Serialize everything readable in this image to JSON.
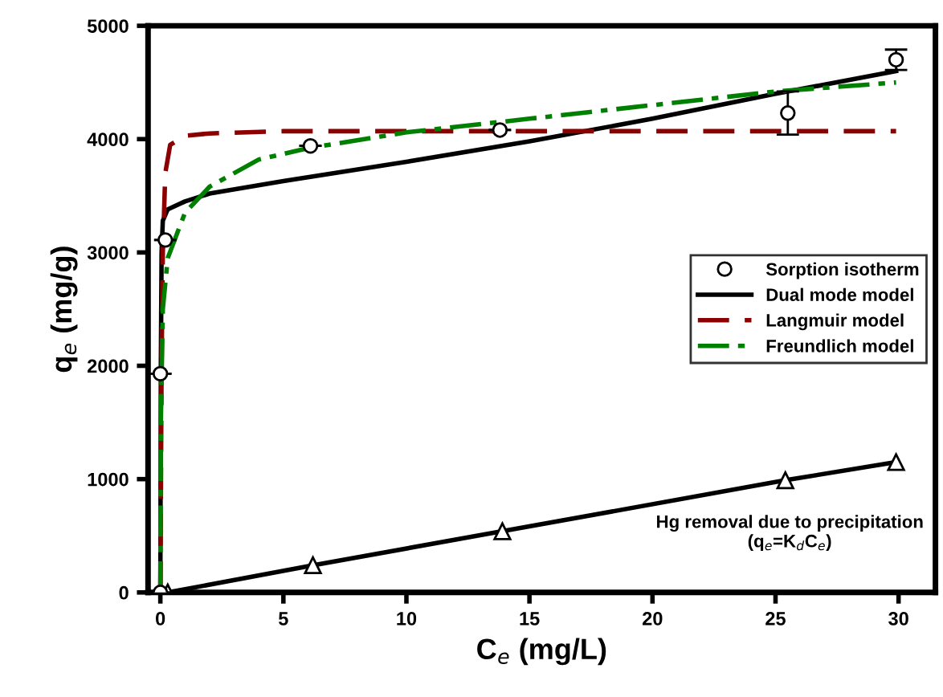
{
  "chart_data": {
    "type": "line",
    "xlabel": "C$_{e}$ (mg/L)",
    "ylabel": "q$_{e}$ (mg/g)",
    "xlim": [
      -0.5,
      31.5
    ],
    "xticks": [
      0,
      5,
      10,
      15,
      20,
      25,
      30
    ],
    "ylim": [
      0,
      5000
    ],
    "yticks": [
      0,
      1000,
      2000,
      3000,
      4000,
      5000
    ],
    "grid": false,
    "legend": "right",
    "annotations": [
      "Hg removal due to precipitation\n(q$_{e}$=K$_{d}$C$_{e}$)"
    ],
    "series": [
      {
        "name": "Sorption isotherm",
        "type": "scatter",
        "marker": "circle",
        "color": "#000000",
        "x": [
          0,
          0,
          0.2,
          6.1,
          13.8,
          25.5,
          29.9
        ],
        "values": [
          0,
          1930,
          3110,
          3940,
          4080,
          4230,
          4700
        ],
        "errors": [
          null,
          null,
          null,
          null,
          null,
          190,
          90
        ]
      },
      {
        "name": "Dual mode model",
        "line_style": "solid",
        "color": "#000000",
        "x": [
          0,
          0.02,
          0.05,
          0.1,
          0.3,
          1,
          2,
          5,
          10,
          15,
          20,
          25,
          29.9
        ],
        "values": [
          0,
          2000,
          3000,
          3280,
          3380,
          3450,
          3520,
          3630,
          3800,
          3980,
          4180,
          4400,
          4600
        ]
      },
      {
        "name": "Langmuir model",
        "line_style": "dashed",
        "color": "#8b0000",
        "x": [
          0,
          0.05,
          0.1,
          0.2,
          0.4,
          1,
          2,
          5,
          29.9
        ],
        "values": [
          0,
          2000,
          3000,
          3700,
          3950,
          4030,
          4050,
          4070,
          4070
        ]
      },
      {
        "name": "Freundlich model",
        "line_style": "dashdot",
        "color": "#008000",
        "x": [
          0,
          0.02,
          0.1,
          0.3,
          1,
          2,
          4,
          6,
          10,
          15,
          20,
          25,
          29.9
        ],
        "values": [
          0,
          1500,
          2500,
          2950,
          3350,
          3580,
          3820,
          3920,
          4060,
          4180,
          4300,
          4420,
          4500
        ]
      },
      {
        "line_style": "solid",
        "marker": "triangle",
        "color": "#000000",
        "x": [
          0.3,
          6.2,
          13.9,
          25.4,
          29.9
        ],
        "values": [
          0,
          240,
          540,
          990,
          1150
        ]
      }
    ]
  }
}
